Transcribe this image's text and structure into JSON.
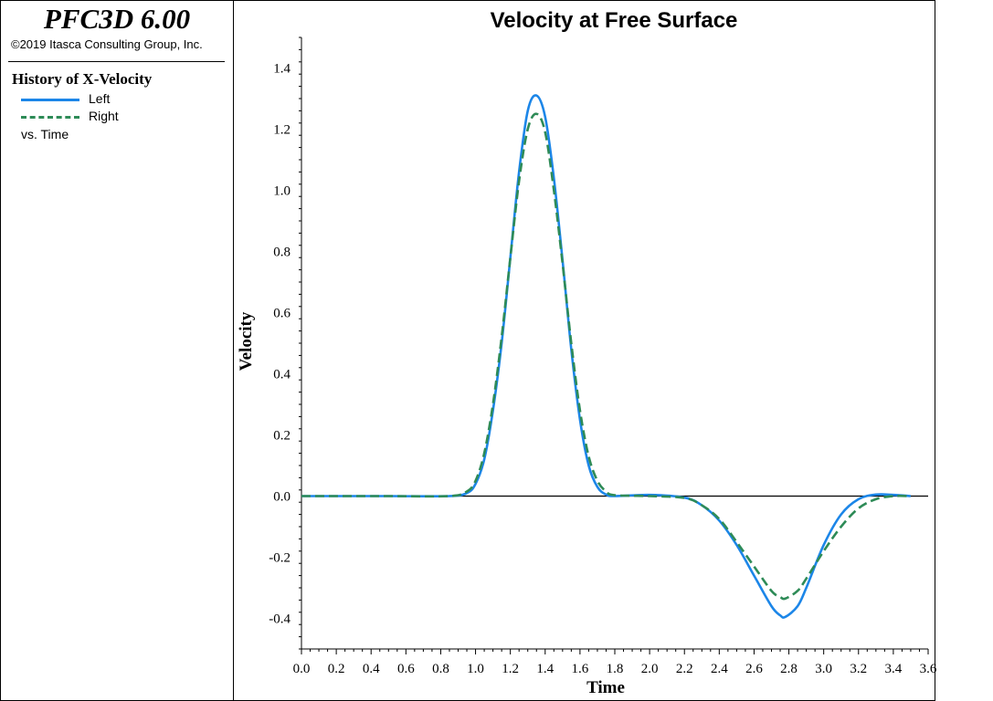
{
  "header": {
    "app_title": "PFC3D 6.00",
    "copyright": "©2019 Itasca Consulting Group, Inc."
  },
  "legend": {
    "title": "History of X-Velocity",
    "items": [
      {
        "label": "Left",
        "color": "#1c86e8",
        "style": "solid"
      },
      {
        "label": "Right",
        "color": "#2e8b57",
        "style": "dashed"
      }
    ],
    "vs_label": "vs. Time"
  },
  "chart_data": {
    "type": "line",
    "title": "Velocity at Free Surface",
    "xlabel": "Time",
    "ylabel": "Velocity",
    "xlim": [
      0.0,
      3.6
    ],
    "ylim": [
      -0.5,
      1.5
    ],
    "x_ticks": [
      "0.0",
      "0.2",
      "0.4",
      "0.6",
      "0.8",
      "1.0",
      "1.2",
      "1.4",
      "1.6",
      "1.8",
      "2.0",
      "2.2",
      "2.4",
      "2.6",
      "2.8",
      "3.0",
      "3.2",
      "3.4",
      "3.6"
    ],
    "y_ticks": [
      "-0.4",
      "-0.2",
      "0.0",
      "0.2",
      "0.4",
      "0.6",
      "0.8",
      "1.0",
      "1.2",
      "1.4"
    ],
    "y_tick_values": [
      -0.4,
      -0.2,
      0.0,
      0.2,
      0.4,
      0.6,
      0.8,
      1.0,
      1.2,
      1.4
    ],
    "grid": false,
    "zero_line": true,
    "series": [
      {
        "name": "Left",
        "color": "#1c86e8",
        "dash": "solid",
        "x": [
          0.0,
          0.5,
          0.85,
          0.95,
          1.0,
          1.05,
          1.1,
          1.15,
          1.2,
          1.25,
          1.3,
          1.35,
          1.4,
          1.45,
          1.5,
          1.55,
          1.6,
          1.65,
          1.7,
          1.75,
          1.8,
          2.0,
          2.2,
          2.3,
          2.4,
          2.5,
          2.6,
          2.7,
          2.75,
          2.78,
          2.85,
          2.9,
          3.0,
          3.1,
          3.2,
          3.3,
          3.4,
          3.5
        ],
        "y": [
          0.0,
          0.0,
          0.0,
          0.01,
          0.04,
          0.12,
          0.28,
          0.5,
          0.78,
          1.06,
          1.26,
          1.31,
          1.24,
          1.04,
          0.77,
          0.48,
          0.25,
          0.1,
          0.03,
          0.005,
          0.0,
          0.004,
          -0.005,
          -0.03,
          -0.08,
          -0.16,
          -0.26,
          -0.36,
          -0.39,
          -0.395,
          -0.36,
          -0.3,
          -0.16,
          -0.06,
          -0.01,
          0.005,
          0.004,
          0.0
        ]
      },
      {
        "name": "Right",
        "color": "#2e8b57",
        "dash": "dashed",
        "x": [
          0.0,
          0.5,
          0.85,
          0.95,
          1.0,
          1.05,
          1.1,
          1.15,
          1.2,
          1.25,
          1.3,
          1.35,
          1.4,
          1.45,
          1.5,
          1.55,
          1.6,
          1.65,
          1.7,
          1.75,
          1.8,
          2.0,
          2.2,
          2.3,
          2.4,
          2.5,
          2.6,
          2.7,
          2.75,
          2.78,
          2.85,
          2.9,
          3.0,
          3.1,
          3.2,
          3.3,
          3.4,
          3.5
        ],
        "y": [
          0.0,
          0.0,
          0.0,
          0.015,
          0.05,
          0.14,
          0.3,
          0.52,
          0.78,
          1.03,
          1.2,
          1.25,
          1.19,
          1.0,
          0.76,
          0.5,
          0.28,
          0.13,
          0.05,
          0.015,
          0.003,
          0.0,
          -0.006,
          -0.03,
          -0.075,
          -0.15,
          -0.23,
          -0.31,
          -0.33,
          -0.335,
          -0.31,
          -0.27,
          -0.18,
          -0.1,
          -0.04,
          -0.01,
          0.0,
          0.0
        ]
      }
    ]
  }
}
